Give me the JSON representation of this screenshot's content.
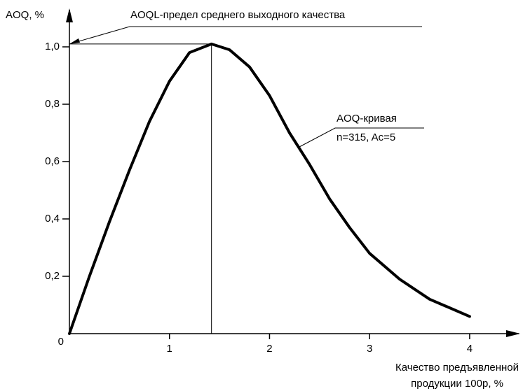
{
  "chart_data": {
    "type": "line",
    "y_label": "AOQ, %",
    "x_label": [
      "Качество предъявленной",
      "продукции 100p, %"
    ],
    "annotations": [
      "AOQL-предел среднего выходного качества",
      "AOQ-кривая",
      "n=315, Ac=5"
    ],
    "x": [
      0,
      0.2,
      0.4,
      0.6,
      0.8,
      1.0,
      1.2,
      1.42,
      1.6,
      1.8,
      2.0,
      2.2,
      2.4,
      2.6,
      2.8,
      3.0,
      3.3,
      3.6,
      4.0
    ],
    "series": [
      {
        "color": "#000000",
        "values": [
          0,
          0.2,
          0.39,
          0.57,
          0.74,
          0.88,
          0.98,
          1.01,
          0.99,
          0.93,
          0.83,
          0.7,
          0.59,
          0.47,
          0.37,
          0.28,
          0.19,
          0.12,
          0.06
        ]
      }
    ],
    "xlim": [
      0,
      4.4
    ],
    "ylim": [
      0,
      1.1
    ],
    "xticks": [
      1,
      2,
      3,
      4
    ],
    "yticks": [
      0,
      {
        "value": 0.2,
        "label": "0,2"
      },
      {
        "value": 0.4,
        "label": "0,4"
      },
      {
        "value": 0.6,
        "label": "0,6"
      },
      {
        "value": 0.8,
        "label": "0,8"
      },
      {
        "value": 1.0,
        "label": "1,0"
      }
    ],
    "grid": false
  }
}
